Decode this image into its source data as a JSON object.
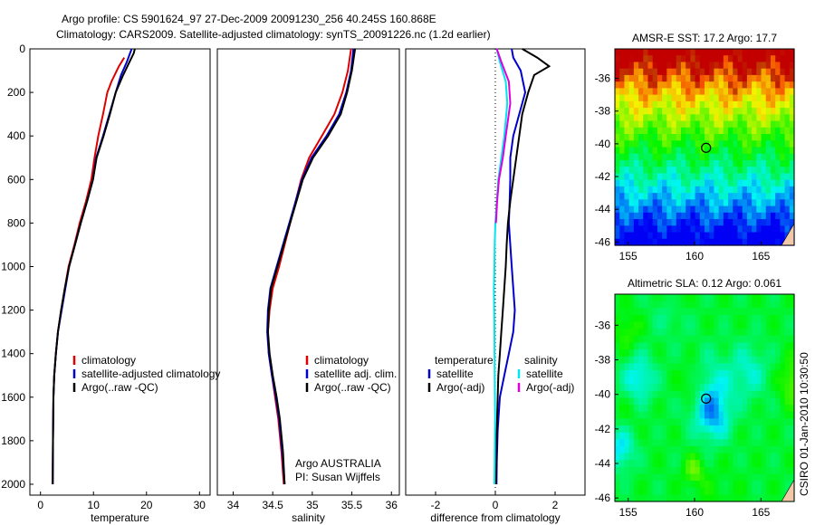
{
  "header": {
    "line1": "Argo profile: CS 5901624_97 27-Dec-2009 20091230_256 40.245S 160.868E",
    "line2": "Climatology: CARS2009. Satellite-adjusted climatology: synTS_20091226.nc (1.2d earlier)"
  },
  "side_stamp": "CSIRO 01-Jan-2010 10:30:50",
  "colors": {
    "climatology": "#dd0000",
    "satellite": "#0000cc",
    "argo": "#000000",
    "salinity_satellite": "#00e5ee",
    "salinity_argo": "#dd00dd"
  },
  "chart_data": [
    {
      "type": "line",
      "id": "temperature",
      "xlabel": "temperature",
      "ylabel": "",
      "xlim": [
        -2,
        32
      ],
      "ylim": [
        2050,
        0
      ],
      "xticks": [
        0,
        10,
        20,
        30
      ],
      "yticks": [
        0,
        200,
        400,
        600,
        800,
        1000,
        1200,
        1400,
        1600,
        1800,
        2000
      ],
      "legend": {
        "placement": "lower-right",
        "entries": [
          "climatology",
          "satellite-adjusted climatology",
          "Argo(..raw -QC)"
        ]
      },
      "series": [
        {
          "name": "climatology",
          "color": "#dd0000",
          "x": [
            15.8,
            14.8,
            13.4,
            12.6,
            11.8,
            10.9,
            10.2,
            9.6,
            8.6,
            7.4,
            6.4,
            5.3,
            4.6,
            3.9,
            3.3,
            2.9,
            2.6,
            2.45,
            2.35,
            2.3
          ],
          "y": [
            40,
            80,
            150,
            200,
            300,
            400,
            500,
            600,
            700,
            800,
            900,
            1000,
            1100,
            1200,
            1300,
            1400,
            1500,
            1600,
            1800,
            2000
          ]
        },
        {
          "name": "satellite-adjusted climatology",
          "color": "#0000cc",
          "x": [
            17.2,
            16.3,
            15.2,
            14.2,
            13.0,
            11.8,
            10.5,
            9.9,
            8.8,
            7.6,
            6.5,
            5.4,
            4.7,
            4.0,
            3.3,
            2.9,
            2.6,
            2.45,
            2.35,
            2.3
          ],
          "y": [
            0,
            60,
            120,
            200,
            300,
            400,
            500,
            600,
            700,
            800,
            900,
            1000,
            1100,
            1200,
            1300,
            1400,
            1500,
            1600,
            1800,
            2000
          ]
        },
        {
          "name": "Argo(..raw -QC)",
          "color": "#000000",
          "x": [
            17.8,
            17.6,
            16.8,
            15.6,
            14.2,
            13.1,
            11.9,
            10.6,
            9.9,
            8.8,
            7.6,
            6.5,
            5.4,
            4.6,
            3.9,
            3.3,
            2.9,
            2.6,
            2.45,
            2.35,
            2.3
          ],
          "y": [
            0,
            20,
            60,
            120,
            200,
            300,
            400,
            500,
            600,
            700,
            800,
            900,
            1000,
            1100,
            1200,
            1300,
            1400,
            1500,
            1600,
            1800,
            2000
          ]
        }
      ]
    },
    {
      "type": "line",
      "id": "salinity",
      "xlabel": "salinity",
      "ylabel": "",
      "xlim": [
        33.8,
        36.1
      ],
      "ylim": [
        2050,
        0
      ],
      "xticks": [
        "34",
        "34.5",
        "35",
        "35.5",
        "36"
      ],
      "legend": {
        "placement": "lower-right",
        "entries": [
          "climatology",
          "satellite adj. clim.",
          "Argo(..raw -QC)"
        ]
      },
      "annotations": [
        "Argo AUSTRALIA",
        "PI: Susan Wijffels"
      ],
      "series": [
        {
          "name": "climatology",
          "color": "#dd0000",
          "x": [
            35.49,
            35.45,
            35.38,
            35.28,
            35.12,
            34.96,
            34.86,
            34.79,
            34.72,
            34.65,
            34.58,
            34.5,
            34.46,
            34.44,
            34.45,
            34.49,
            34.53,
            34.57,
            34.61,
            34.64
          ],
          "y": [
            0,
            100,
            200,
            300,
            400,
            500,
            600,
            700,
            800,
            900,
            1000,
            1100,
            1200,
            1300,
            1400,
            1500,
            1600,
            1700,
            1850,
            2000
          ]
        },
        {
          "name": "satellite adj. clim.",
          "color": "#0000cc",
          "x": [
            35.52,
            35.49,
            35.43,
            35.34,
            35.18,
            34.99,
            34.87,
            34.79,
            34.71,
            34.63,
            34.55,
            34.47,
            34.44,
            34.43,
            34.45,
            34.49,
            34.54,
            34.58,
            34.62,
            34.65
          ],
          "y": [
            0,
            100,
            200,
            300,
            400,
            500,
            600,
            700,
            800,
            900,
            1000,
            1100,
            1200,
            1300,
            1400,
            1500,
            1600,
            1700,
            1850,
            2000
          ]
        },
        {
          "name": "Argo(..raw -QC)",
          "color": "#000000",
          "x": [
            35.54,
            35.5,
            35.44,
            35.36,
            35.2,
            35.01,
            34.88,
            34.8,
            34.72,
            34.64,
            34.56,
            34.48,
            34.45,
            34.44,
            34.46,
            34.5,
            34.55,
            34.59,
            34.63,
            34.65
          ],
          "y": [
            0,
            100,
            200,
            300,
            400,
            500,
            600,
            700,
            800,
            900,
            1000,
            1100,
            1200,
            1300,
            1400,
            1500,
            1600,
            1700,
            1850,
            2000
          ]
        }
      ]
    },
    {
      "type": "line",
      "id": "difference",
      "xlabel": "difference from climatology",
      "ylabel": "",
      "xlim": [
        -3,
        3
      ],
      "ylim": [
        2050,
        0
      ],
      "xticks": [
        -2,
        0,
        2
      ],
      "legend": {
        "placement": "lower-center",
        "groups": [
          {
            "title": "temperature",
            "entries": [
              "satellite",
              "Argo(-adj)"
            ]
          },
          {
            "title": "salinity",
            "entries": [
              "satellite",
              "Argo(-adj)"
            ]
          }
        ]
      },
      "series": [
        {
          "name": "temperature satellite",
          "color": "#0000cc",
          "x": [
            0.55,
            0.6,
            0.85,
            1.0,
            0.8,
            0.6,
            0.5,
            0.5,
            0.48,
            0.45,
            0.5,
            0.55,
            0.6,
            0.65,
            0.6,
            0.45,
            0.3,
            0.15,
            0.08,
            0.05,
            0.04
          ],
          "y": [
            0,
            40,
            100,
            200,
            300,
            400,
            500,
            600,
            700,
            800,
            900,
            1000,
            1100,
            1200,
            1300,
            1400,
            1500,
            1600,
            1750,
            1900,
            2000
          ]
        },
        {
          "name": "temperature Argo(-adj)",
          "color": "#000000",
          "x": [
            0.9,
            1.4,
            1.8,
            1.3,
            1.1,
            0.9,
            0.8,
            0.7,
            0.6,
            0.5,
            0.42,
            0.38,
            0.35,
            0.3,
            0.25,
            0.2,
            0.15,
            0.1,
            0.05,
            0.02
          ],
          "y": [
            0,
            40,
            80,
            120,
            200,
            300,
            400,
            500,
            600,
            700,
            800,
            900,
            1000,
            1100,
            1200,
            1300,
            1400,
            1500,
            1750,
            2000
          ]
        },
        {
          "name": "salinity satellite",
          "color": "#00e5ee",
          "x": [
            0.05,
            0.15,
            0.35,
            0.4,
            0.3,
            0.2,
            0.1,
            0.05,
            0.0,
            -0.02,
            -0.03,
            -0.05,
            -0.04,
            -0.03,
            -0.02,
            -0.01,
            -0.02,
            -0.03
          ],
          "y": [
            0,
            60,
            150,
            250,
            400,
            500,
            600,
            700,
            800,
            900,
            1000,
            1100,
            1200,
            1300,
            1500,
            1700,
            1900,
            2000
          ]
        },
        {
          "name": "salinity Argo(-adj)",
          "color": "#dd00dd",
          "x": [
            0.05,
            0.2,
            0.45,
            0.5,
            0.35,
            0.25,
            0.12,
            0.06,
            0.02
          ],
          "y": [
            0,
            60,
            150,
            250,
            400,
            500,
            600,
            700,
            800
          ]
        }
      ]
    },
    {
      "type": "heatmap",
      "id": "sst_map",
      "title": "AMSR-E SST: 17.2 Argo: 17.7",
      "xlim": [
        154,
        167.5
      ],
      "ylim": [
        -46.2,
        -34.2
      ],
      "xticks": [
        155,
        160,
        165
      ],
      "yticks": [
        -36,
        -38,
        -40,
        -42,
        -44,
        -46
      ],
      "marker": {
        "lon": 160.868,
        "lat": -40.245
      }
    },
    {
      "type": "heatmap",
      "id": "sla_map",
      "title": "Altimetric SLA: 0.12 Argo: 0.061",
      "xlim": [
        154,
        167.5
      ],
      "ylim": [
        -46.2,
        -34.2
      ],
      "xticks": [
        155,
        160,
        165
      ],
      "yticks": [
        -36,
        -38,
        -40,
        -42,
        -44,
        -46
      ],
      "marker": {
        "lon": 160.868,
        "lat": -40.245
      }
    }
  ]
}
